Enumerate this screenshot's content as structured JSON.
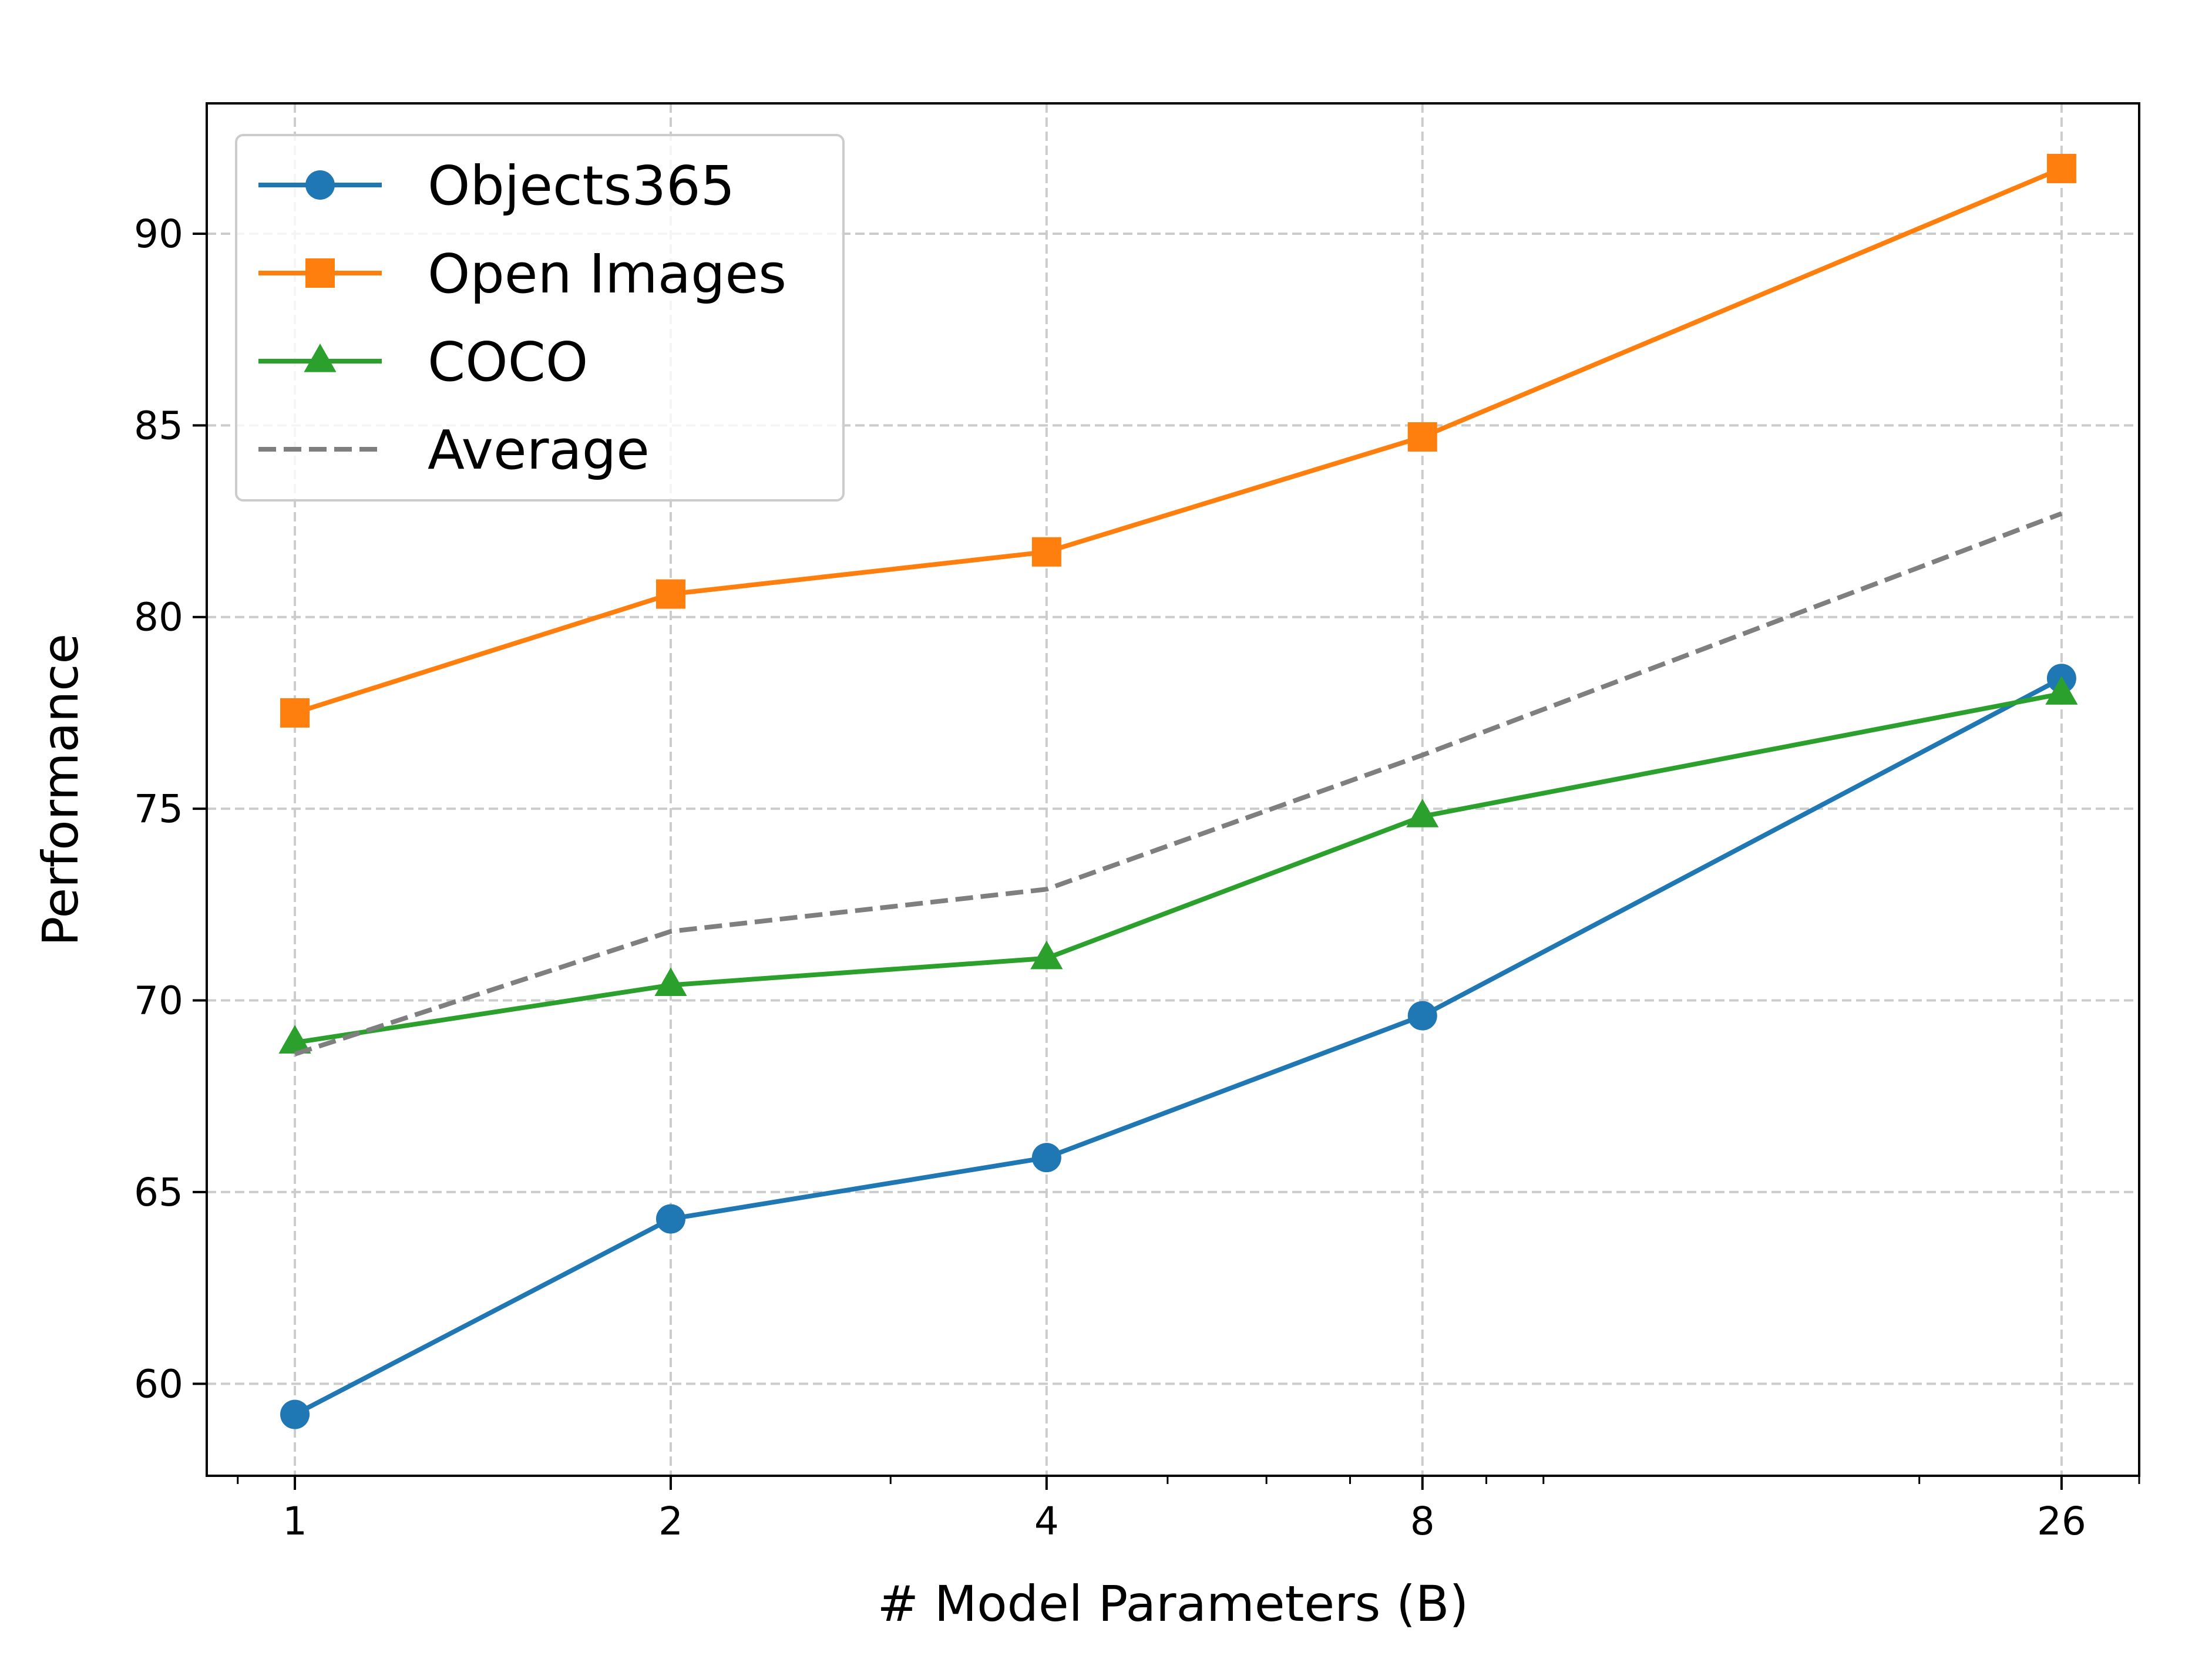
{
  "chart_data": {
    "type": "line",
    "xlabel": "# Model Parameters (B)",
    "ylabel": "Performance",
    "x_scale": "log",
    "x": [
      1,
      2,
      4,
      8,
      26
    ],
    "x_tick_labels": [
      "1",
      "2",
      "4",
      "8",
      "26"
    ],
    "xlim": [
      0.85,
      30
    ],
    "y_ticks": [
      60,
      65,
      70,
      75,
      80,
      85,
      90
    ],
    "ylim": [
      57.6,
      93.4
    ],
    "grid": true,
    "legend_position": "top-left",
    "series": [
      {
        "name": "Objects365",
        "values": [
          59.2,
          64.3,
          65.9,
          69.6,
          78.4
        ],
        "color": "#1f77b4",
        "marker": "circle",
        "line_style": "solid"
      },
      {
        "name": "Open Images",
        "values": [
          77.5,
          80.6,
          81.7,
          84.7,
          91.7
        ],
        "color": "#ff7f0e",
        "marker": "square",
        "line_style": "solid"
      },
      {
        "name": "COCO",
        "values": [
          68.9,
          70.4,
          71.1,
          74.8,
          78.0
        ],
        "color": "#2ca02c",
        "marker": "triangle",
        "line_style": "solid"
      },
      {
        "name": "Average",
        "values": [
          68.6,
          71.8,
          72.9,
          76.4,
          82.7
        ],
        "color": "#7f7f7f",
        "marker": "none",
        "line_style": "dashed"
      }
    ]
  }
}
